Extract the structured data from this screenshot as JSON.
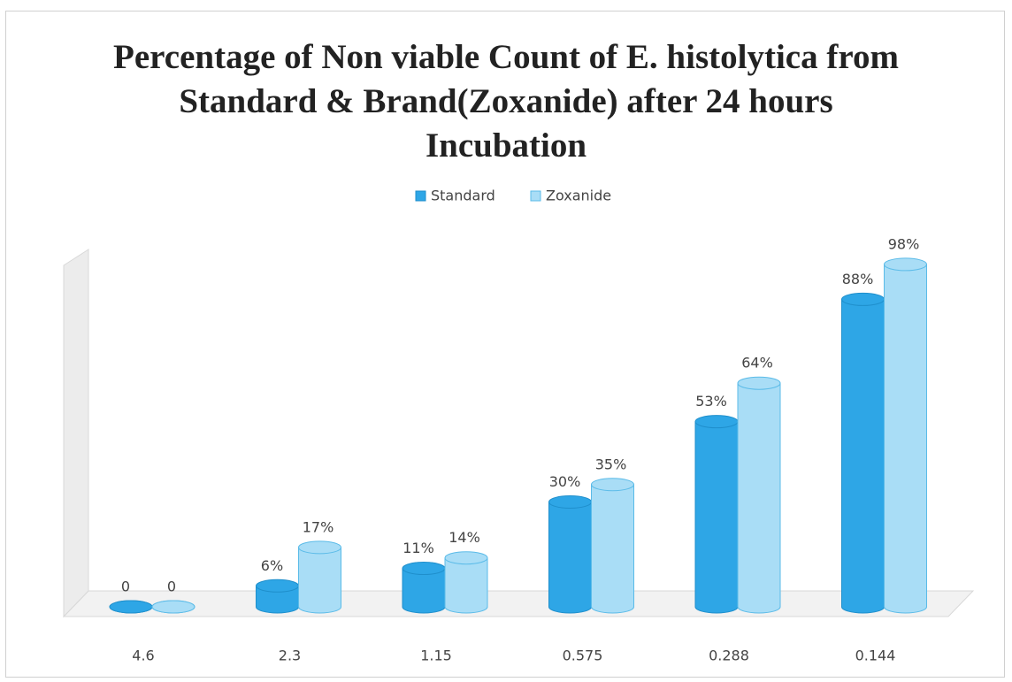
{
  "chart_data": {
    "type": "bar",
    "title": "Percentage of Non viable Count of E. histolytica from Standard & Brand(Zoxanide) after 24 hours Incubation",
    "categories": [
      "4.6",
      "2.3",
      "1.15",
      "0.575",
      "0.288",
      "0.144"
    ],
    "series": [
      {
        "name": "Standard",
        "color": "#2ea6e6",
        "values": [
          0,
          6,
          11,
          30,
          53,
          88
        ],
        "value_labels": [
          "0",
          "6%",
          "11%",
          "30%",
          "53%",
          "88%"
        ]
      },
      {
        "name": "Zoxanide",
        "color": "#a9ddf6",
        "values": [
          0,
          17,
          14,
          35,
          64,
          98
        ],
        "value_labels": [
          "0",
          "17%",
          "14%",
          "35%",
          "64%",
          "98%"
        ]
      }
    ]
  }
}
